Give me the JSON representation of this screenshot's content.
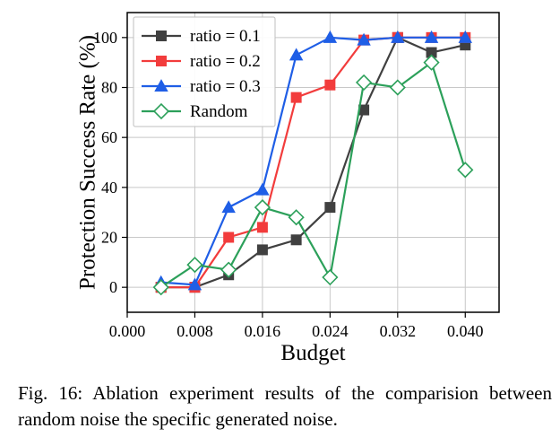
{
  "chart_data": {
    "type": "line",
    "xlabel": "Budget",
    "ylabel": "Protection Success Rate (%)",
    "xlim": [
      0.0,
      0.044
    ],
    "ylim": [
      -10,
      110
    ],
    "xticks": [
      0.0,
      0.008,
      0.016,
      0.024,
      0.032,
      0.04
    ],
    "xtick_labels": [
      "0.000",
      "0.008",
      "0.016",
      "0.024",
      "0.032",
      "0.040"
    ],
    "yticks": [
      0,
      20,
      40,
      60,
      80,
      100
    ],
    "ytick_labels": [
      "0",
      "20",
      "40",
      "60",
      "80",
      "100"
    ],
    "grid": true,
    "legend_position": "top-left",
    "x": [
      0.004,
      0.008,
      0.012,
      0.016,
      0.02,
      0.024,
      0.028,
      0.032,
      0.036,
      0.04
    ],
    "series": [
      {
        "name": "ratio = 0.1",
        "color": "#404040",
        "marker": "square",
        "filled": true,
        "values": [
          0,
          0,
          5,
          15,
          19,
          32,
          71,
          100,
          94,
          97
        ]
      },
      {
        "name": "ratio = 0.2",
        "color": "#f23c3c",
        "marker": "square",
        "filled": true,
        "values": [
          0,
          0,
          20,
          24,
          76,
          81,
          99,
          100,
          100,
          100
        ]
      },
      {
        "name": "ratio = 0.3",
        "color": "#1f5ee6",
        "marker": "triangle",
        "filled": true,
        "values": [
          2,
          1,
          32,
          39,
          93,
          100,
          99,
          100,
          100,
          100
        ]
      },
      {
        "name": "Random",
        "color": "#2ca05a",
        "marker": "diamond",
        "filled": false,
        "values": [
          0,
          9,
          7,
          32,
          28,
          4,
          82,
          80,
          90,
          47
        ]
      }
    ]
  },
  "caption": "Fig. 16: Ablation experiment results of the comparision between random noise the specific generated noise."
}
